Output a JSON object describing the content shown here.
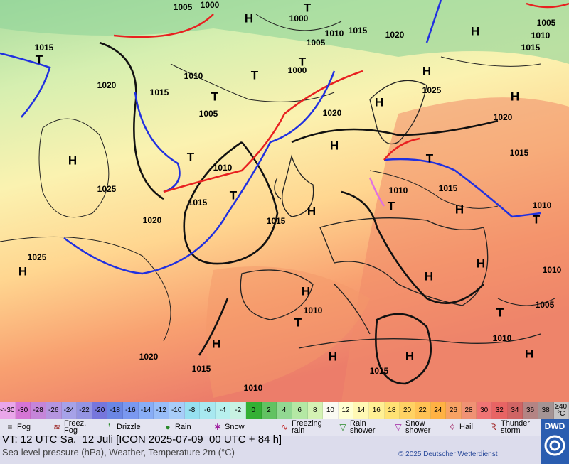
{
  "map": {
    "labels": [
      "1005",
      "1000",
      "H",
      "T",
      "1000",
      "1010",
      "1015",
      "1020",
      "H",
      "1005",
      "1010",
      "1015",
      "1015",
      "T",
      "1005",
      "T",
      "1000",
      "1010",
      "T",
      "1020",
      "1015",
      "H",
      "1025",
      "T",
      "1005",
      "H",
      "H",
      "1020",
      "1020",
      "H",
      "1015",
      "T",
      "H",
      "1010",
      "T",
      "1025",
      "1010",
      "T",
      "1015",
      "1015",
      "H",
      "T",
      "H",
      "1010",
      "T",
      "1015",
      "1020",
      "1025",
      "H",
      "H",
      "H",
      "1010",
      "H",
      "1010",
      "T",
      "T",
      "1005",
      "1010",
      "H",
      "H",
      "H",
      "H",
      "1020",
      "1015",
      "1015",
      "1010"
    ]
  },
  "color_scale": [
    {
      "label": "<-30",
      "color": "#eaa6ea"
    },
    {
      "label": "-30",
      "color": "#d575d5"
    },
    {
      "label": "-28",
      "color": "#c585d9"
    },
    {
      "label": "-26",
      "color": "#b595e0"
    },
    {
      "label": "-24",
      "color": "#a6a2e8"
    },
    {
      "label": "-22",
      "color": "#9494e2"
    },
    {
      "label": "-20",
      "color": "#7676dc"
    },
    {
      "label": "-18",
      "color": "#6b86e4"
    },
    {
      "label": "-16",
      "color": "#7a98f0"
    },
    {
      "label": "-14",
      "color": "#88adf6"
    },
    {
      "label": "-12",
      "color": "#98bdf8"
    },
    {
      "label": "-10",
      "color": "#a8cdf8"
    },
    {
      "label": "-8",
      "color": "#96e0f0"
    },
    {
      "label": "-6",
      "color": "#a8e8f0"
    },
    {
      "label": "-4",
      "color": "#b8f0ee"
    },
    {
      "label": "-2",
      "color": "#c8f2e2"
    },
    {
      "label": "0",
      "color": "#34b034"
    },
    {
      "label": "2",
      "color": "#62c262"
    },
    {
      "label": "4",
      "color": "#92d892"
    },
    {
      "label": "6",
      "color": "#b4e8a4"
    },
    {
      "label": "8",
      "color": "#d4f2b4"
    },
    {
      "label": "10",
      "color": "#fafaf2"
    },
    {
      "label": "12",
      "color": "#ffffd2"
    },
    {
      "label": "14",
      "color": "#fff8b4"
    },
    {
      "label": "16",
      "color": "#fff094"
    },
    {
      "label": "18",
      "color": "#ffe274"
    },
    {
      "label": "20",
      "color": "#ffd264"
    },
    {
      "label": "22",
      "color": "#ffc254"
    },
    {
      "label": "24",
      "color": "#ffb244"
    },
    {
      "label": "26",
      "color": "#f8a264"
    },
    {
      "label": "28",
      "color": "#f09274"
    },
    {
      "label": "30",
      "color": "#f07474"
    },
    {
      "label": "32",
      "color": "#e86464"
    },
    {
      "label": "34",
      "color": "#d06464"
    },
    {
      "label": "36",
      "color": "#b48484"
    },
    {
      "label": "38",
      "color": "#a49494"
    },
    {
      "label": "≥40 °C",
      "color": "#c4c4c4"
    }
  ],
  "legend": {
    "items": [
      "Fog",
      "Freez. Fog",
      "Drizzle",
      "Rain",
      "Snow",
      "Freezing rain",
      "Rain shower",
      "Snow shower",
      "Hail",
      "Thunder storm"
    ]
  },
  "footer": {
    "valid_time": "VT: 12 UTC Sa.  12 Juli [ICON 2025-07-09  00 UTC + 84 h]",
    "description": "Sea level pressure (hPa), Weather, Temperature 2m (°C)",
    "copyright": "© 2025 Deutscher Wetterdienst",
    "logo": "DWD"
  }
}
